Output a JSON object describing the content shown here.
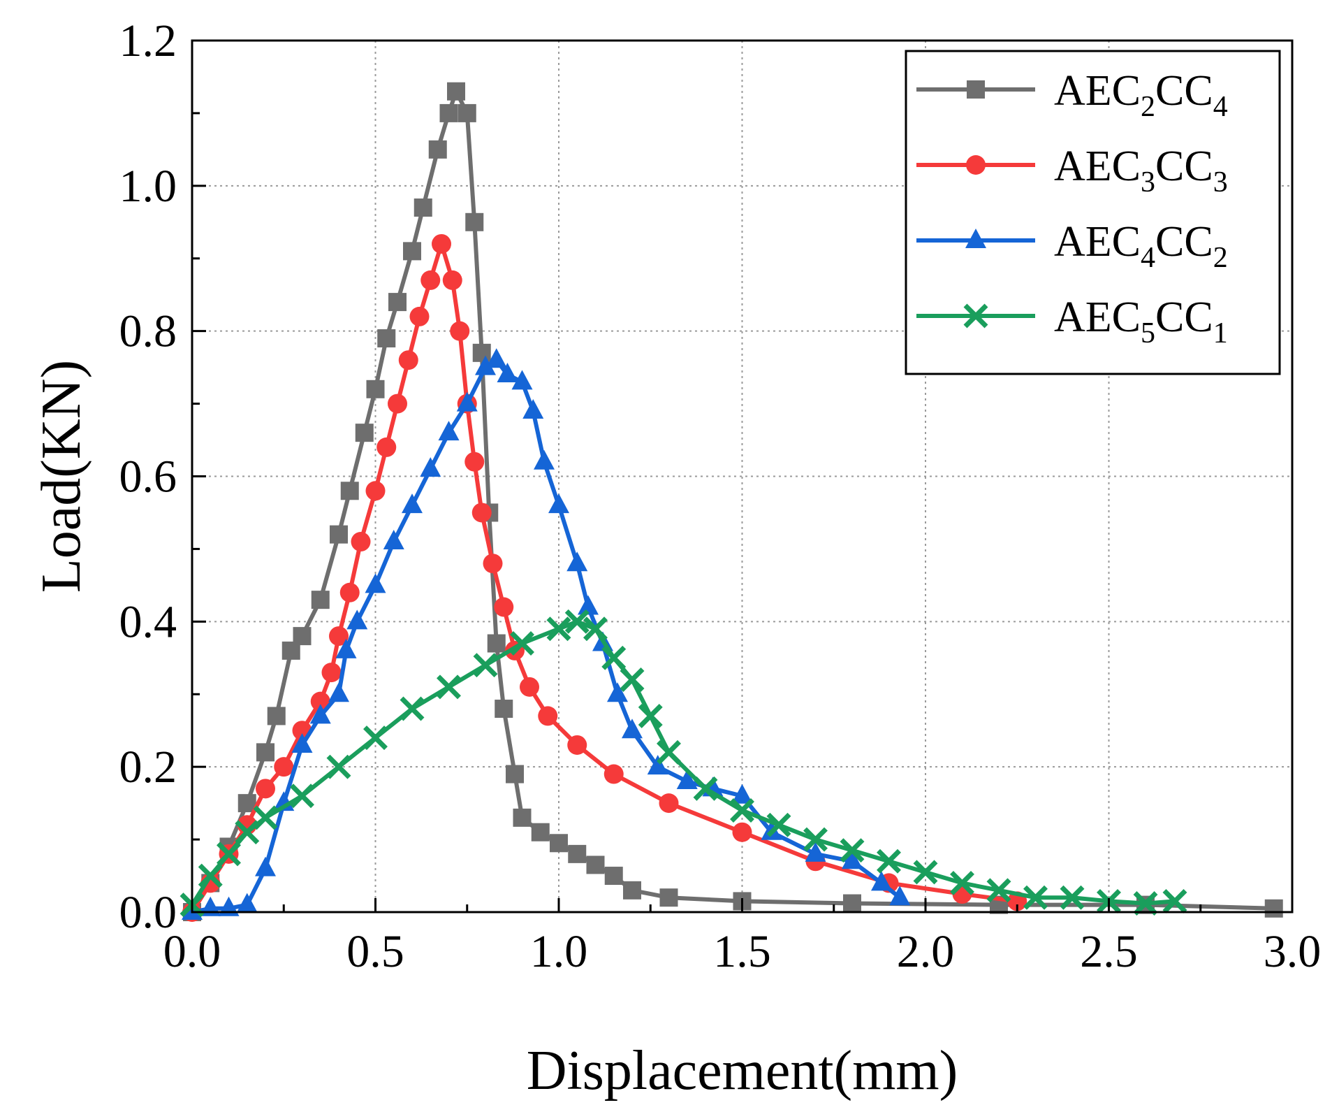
{
  "chart_data": {
    "type": "line",
    "xlabel": "Displacement(mm)",
    "ylabel": "Load(KN)",
    "xlim": [
      0,
      3.0
    ],
    "ylim": [
      0,
      1.2
    ],
    "xticks": [
      "0.0",
      "0.5",
      "1.0",
      "1.5",
      "2.0",
      "2.5",
      "3.0"
    ],
    "yticks": [
      "0.0",
      "0.2",
      "0.4",
      "0.6",
      "0.8",
      "1.0",
      "1.2"
    ],
    "grid": true,
    "legend_position": "top-right",
    "series": [
      {
        "name": "AEC2CC4",
        "legend": {
          "p1": "AEC",
          "s1": "2",
          "p2": "CC",
          "s2": "4"
        },
        "color": "#6e6e6e",
        "marker": "square",
        "points": [
          [
            0.0,
            0.0
          ],
          [
            0.05,
            0.04
          ],
          [
            0.1,
            0.09
          ],
          [
            0.15,
            0.15
          ],
          [
            0.2,
            0.22
          ],
          [
            0.23,
            0.27
          ],
          [
            0.27,
            0.36
          ],
          [
            0.3,
            0.38
          ],
          [
            0.35,
            0.43
          ],
          [
            0.4,
            0.52
          ],
          [
            0.43,
            0.58
          ],
          [
            0.47,
            0.66
          ],
          [
            0.5,
            0.72
          ],
          [
            0.53,
            0.79
          ],
          [
            0.56,
            0.84
          ],
          [
            0.6,
            0.91
          ],
          [
            0.63,
            0.97
          ],
          [
            0.67,
            1.05
          ],
          [
            0.7,
            1.1
          ],
          [
            0.72,
            1.13
          ],
          [
            0.75,
            1.1
          ],
          [
            0.77,
            0.95
          ],
          [
            0.79,
            0.77
          ],
          [
            0.81,
            0.55
          ],
          [
            0.83,
            0.37
          ],
          [
            0.85,
            0.28
          ],
          [
            0.88,
            0.19
          ],
          [
            0.9,
            0.13
          ],
          [
            0.95,
            0.11
          ],
          [
            1.0,
            0.095
          ],
          [
            1.05,
            0.08
          ],
          [
            1.1,
            0.065
          ],
          [
            1.15,
            0.05
          ],
          [
            1.2,
            0.03
          ],
          [
            1.3,
            0.02
          ],
          [
            1.5,
            0.015
          ],
          [
            1.8,
            0.012
          ],
          [
            2.2,
            0.01
          ],
          [
            2.6,
            0.01
          ],
          [
            2.95,
            0.005
          ]
        ]
      },
      {
        "name": "AEC3CC3",
        "legend": {
          "p1": "AEC",
          "s1": "3",
          "p2": "CC",
          "s2": "3"
        },
        "color": "#f53a3a",
        "marker": "circle",
        "points": [
          [
            0.0,
            0.0
          ],
          [
            0.05,
            0.04
          ],
          [
            0.1,
            0.08
          ],
          [
            0.15,
            0.12
          ],
          [
            0.2,
            0.17
          ],
          [
            0.25,
            0.2
          ],
          [
            0.3,
            0.25
          ],
          [
            0.35,
            0.29
          ],
          [
            0.38,
            0.33
          ],
          [
            0.4,
            0.38
          ],
          [
            0.43,
            0.44
          ],
          [
            0.46,
            0.51
          ],
          [
            0.5,
            0.58
          ],
          [
            0.53,
            0.64
          ],
          [
            0.56,
            0.7
          ],
          [
            0.59,
            0.76
          ],
          [
            0.62,
            0.82
          ],
          [
            0.65,
            0.87
          ],
          [
            0.68,
            0.92
          ],
          [
            0.71,
            0.87
          ],
          [
            0.73,
            0.8
          ],
          [
            0.75,
            0.7
          ],
          [
            0.77,
            0.62
          ],
          [
            0.79,
            0.55
          ],
          [
            0.82,
            0.48
          ],
          [
            0.85,
            0.42
          ],
          [
            0.88,
            0.36
          ],
          [
            0.92,
            0.31
          ],
          [
            0.97,
            0.27
          ],
          [
            1.05,
            0.23
          ],
          [
            1.15,
            0.19
          ],
          [
            1.3,
            0.15
          ],
          [
            1.5,
            0.11
          ],
          [
            1.7,
            0.07
          ],
          [
            1.9,
            0.04
          ],
          [
            2.1,
            0.025
          ],
          [
            2.25,
            0.015
          ]
        ]
      },
      {
        "name": "AEC4CC2",
        "legend": {
          "p1": "AEC",
          "s1": "4",
          "p2": "CC",
          "s2": "2"
        },
        "color": "#1565d6",
        "marker": "triangle",
        "points": [
          [
            0.0,
            0.0
          ],
          [
            0.05,
            0.005
          ],
          [
            0.1,
            0.005
          ],
          [
            0.15,
            0.01
          ],
          [
            0.2,
            0.06
          ],
          [
            0.25,
            0.15
          ],
          [
            0.3,
            0.23
          ],
          [
            0.35,
            0.27
          ],
          [
            0.4,
            0.3
          ],
          [
            0.42,
            0.36
          ],
          [
            0.45,
            0.4
          ],
          [
            0.5,
            0.45
          ],
          [
            0.55,
            0.51
          ],
          [
            0.6,
            0.56
          ],
          [
            0.65,
            0.61
          ],
          [
            0.7,
            0.66
          ],
          [
            0.75,
            0.7
          ],
          [
            0.8,
            0.75
          ],
          [
            0.83,
            0.76
          ],
          [
            0.86,
            0.74
          ],
          [
            0.9,
            0.73
          ],
          [
            0.93,
            0.69
          ],
          [
            0.96,
            0.62
          ],
          [
            1.0,
            0.56
          ],
          [
            1.05,
            0.48
          ],
          [
            1.08,
            0.42
          ],
          [
            1.12,
            0.37
          ],
          [
            1.16,
            0.3
          ],
          [
            1.2,
            0.25
          ],
          [
            1.27,
            0.2
          ],
          [
            1.35,
            0.18
          ],
          [
            1.42,
            0.17
          ],
          [
            1.5,
            0.16
          ],
          [
            1.58,
            0.11
          ],
          [
            1.7,
            0.08
          ],
          [
            1.8,
            0.07
          ],
          [
            1.88,
            0.04
          ],
          [
            1.93,
            0.02
          ]
        ]
      },
      {
        "name": "AEC5CC1",
        "legend": {
          "p1": "AEC",
          "s1": "5",
          "p2": "CC",
          "s2": "1"
        },
        "color": "#1a9e5c",
        "marker": "x",
        "points": [
          [
            0.0,
            0.01
          ],
          [
            0.05,
            0.05
          ],
          [
            0.1,
            0.08
          ],
          [
            0.15,
            0.11
          ],
          [
            0.2,
            0.13
          ],
          [
            0.3,
            0.16
          ],
          [
            0.4,
            0.2
          ],
          [
            0.5,
            0.24
          ],
          [
            0.6,
            0.28
          ],
          [
            0.7,
            0.31
          ],
          [
            0.8,
            0.34
          ],
          [
            0.9,
            0.37
          ],
          [
            1.0,
            0.39
          ],
          [
            1.05,
            0.4
          ],
          [
            1.1,
            0.39
          ],
          [
            1.15,
            0.35
          ],
          [
            1.2,
            0.32
          ],
          [
            1.25,
            0.27
          ],
          [
            1.3,
            0.22
          ],
          [
            1.4,
            0.17
          ],
          [
            1.5,
            0.14
          ],
          [
            1.6,
            0.12
          ],
          [
            1.7,
            0.1
          ],
          [
            1.8,
            0.085
          ],
          [
            1.9,
            0.07
          ],
          [
            2.0,
            0.055
          ],
          [
            2.1,
            0.04
          ],
          [
            2.2,
            0.03
          ],
          [
            2.3,
            0.02
          ],
          [
            2.4,
            0.02
          ],
          [
            2.5,
            0.015
          ],
          [
            2.6,
            0.012
          ],
          [
            2.68,
            0.015
          ]
        ]
      }
    ]
  }
}
